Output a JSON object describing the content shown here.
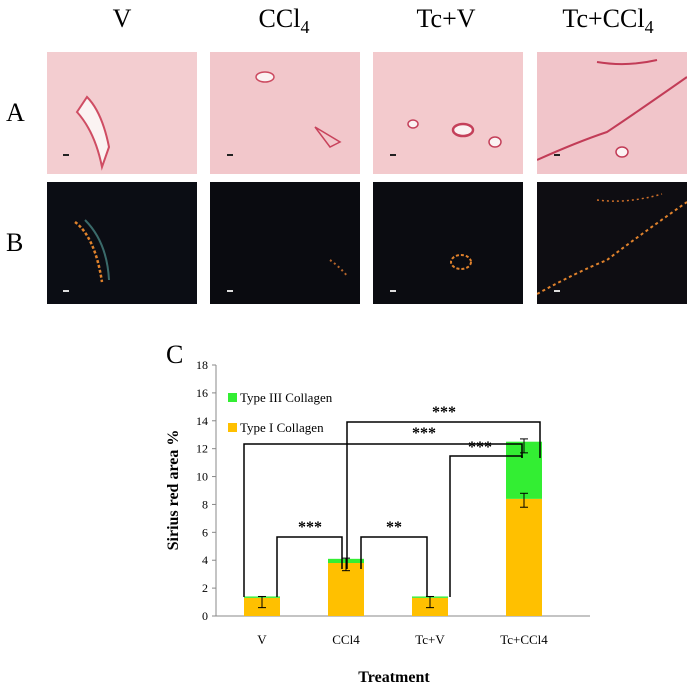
{
  "figure": {
    "columns": [
      {
        "label": "V",
        "sub": ""
      },
      {
        "label": "CCl",
        "sub": "4"
      },
      {
        "label": "Tc+V",
        "sub": ""
      },
      {
        "label": "Tc+CCl",
        "sub": "4"
      }
    ],
    "rows": [
      "A",
      "B"
    ],
    "panel_c_label": "C",
    "colors": {
      "stain_bg": "#f2c9cc",
      "stain_vessel": "#d2475f",
      "dark_bg": "#0b0c12",
      "dark_fiber": "#e0822c",
      "type1": "#ffc000",
      "type3": "#33ee33"
    }
  },
  "significance": [
    "***",
    "***",
    "***",
    "***",
    "**"
  ],
  "chart_data": {
    "type": "bar",
    "stacked": true,
    "categories": [
      "V",
      "CCl4",
      "Tc+V",
      "Tc+CCl4"
    ],
    "series": [
      {
        "name": "Type I Collagen",
        "color": "#ffc000",
        "values": [
          1.3,
          3.8,
          1.3,
          8.4
        ]
      },
      {
        "name": "Type III Collagen",
        "color": "#33ee33",
        "values": [
          0.1,
          0.3,
          0.1,
          4.1
        ]
      }
    ],
    "error_bars": [
      {
        "center": 1.0,
        "err": 0.4
      },
      {
        "center": 3.7,
        "err": 0.45
      },
      {
        "center": 1.0,
        "err": 0.4
      },
      {
        "center": 8.3,
        "err": 0.5
      },
      {
        "center": 12.2,
        "err": 0.5
      }
    ],
    "xlabel": "Treatment",
    "ylabel": "Sirius red area %",
    "ylim": [
      0,
      18
    ],
    "yticks": [
      0,
      2,
      4,
      6,
      8,
      10,
      12,
      14,
      16,
      18
    ],
    "legend_position": "top-left",
    "grid": false
  }
}
